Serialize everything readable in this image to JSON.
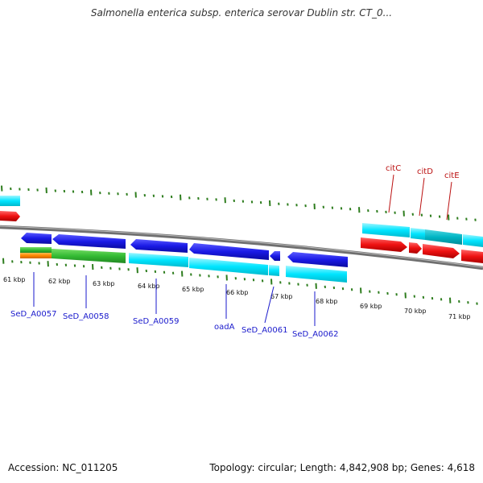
{
  "title": "Salmonella enterica subsp. enterica serovar Dublin str. CT_0...",
  "footer": {
    "accession": "Accession: NC_011205",
    "stats": "Topology: circular; Length: 4,842,908 bp; Genes: 4,618"
  },
  "colors": {
    "backbone": "#888888",
    "tick": "#2e7d1e",
    "forward_cds": "#1a1ae6",
    "forward_cds_light": "#00e5ff",
    "reverse_cds": "#ee1111",
    "gene_green": "#33bb33",
    "gene_orange": "#ff8800",
    "label_blue": "#1a1acc",
    "label_red": "#bb1111"
  },
  "kbp_labels": [
    "61 kbp",
    "62 kbp",
    "63 kbp",
    "64 kbp",
    "65 kbp",
    "66 kbp",
    "67 kbp",
    "68 kbp",
    "69 kbp",
    "70 kbp",
    "71 kbp"
  ],
  "gene_labels_lower": [
    "SeD_A0057",
    "SeD_A0058",
    "SeD_A0059",
    "oadA",
    "SeD_A0061",
    "SeD_A0062"
  ],
  "gene_labels_upper": [
    "citC",
    "citD",
    "citE"
  ]
}
